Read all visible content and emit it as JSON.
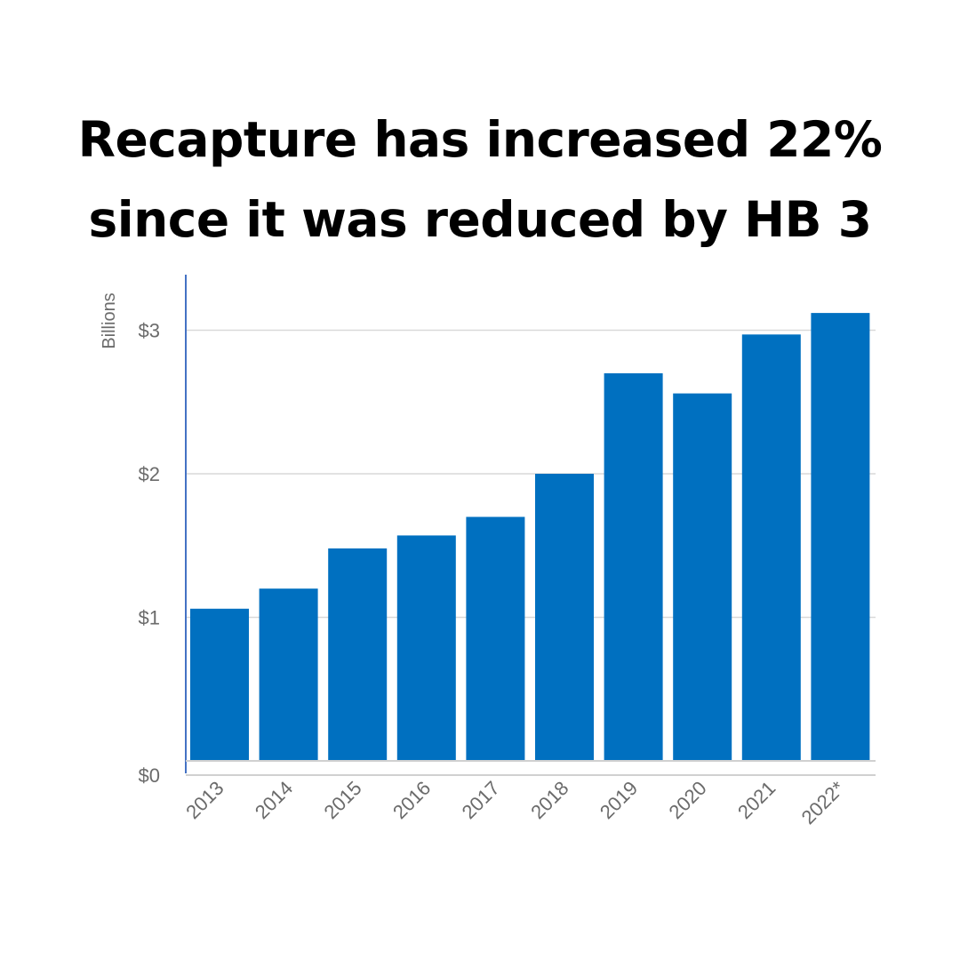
{
  "title": {
    "line1": "Recapture has increased 22%",
    "line2": "since it was reduced by HB 3"
  },
  "chart_data": {
    "type": "bar",
    "categories": [
      "2013",
      "2014",
      "2015",
      "2016",
      "2017",
      "2018",
      "2019",
      "2020",
      "2021",
      "2022*"
    ],
    "values": [
      1.06,
      1.2,
      1.48,
      1.57,
      1.7,
      2.0,
      2.7,
      2.56,
      2.97,
      3.12
    ],
    "ylabel": "Billions",
    "ylim": [
      0,
      3.5
    ],
    "yticks": [
      0,
      1,
      2,
      3
    ],
    "ytick_labels": [
      "$0",
      "$1",
      "$2",
      "$3"
    ],
    "grid": true,
    "bar_color": "#0070c0",
    "grid_color": "#d9d9d9",
    "axis_color": "#4472c4"
  }
}
